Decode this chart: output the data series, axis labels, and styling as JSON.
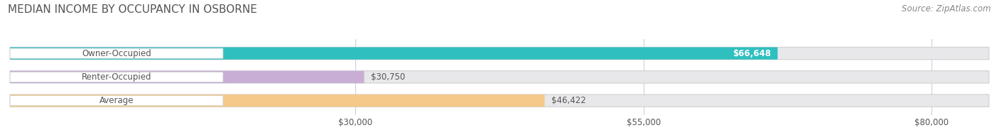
{
  "title": "MEDIAN INCOME BY OCCUPANCY IN OSBORNE",
  "source": "Source: ZipAtlas.com",
  "categories": [
    "Owner-Occupied",
    "Renter-Occupied",
    "Average"
  ],
  "values": [
    66648,
    30750,
    46422
  ],
  "bar_colors": [
    "#30bfbf",
    "#c8aed4",
    "#f5c98a"
  ],
  "bar_track_color": "#e8e8ea",
  "bar_track_edge_color": "#d0d0d4",
  "value_labels": [
    "$66,648",
    "$30,750",
    "$46,422"
  ],
  "value_label_inside": [
    true,
    false,
    false
  ],
  "xticks": [
    30000,
    55000,
    80000
  ],
  "xtick_labels": [
    "$30,000",
    "$55,000",
    "$80,000"
  ],
  "xmin": 0,
  "xmax": 85000,
  "title_fontsize": 11,
  "source_fontsize": 8.5,
  "label_fontsize": 8.5,
  "tick_fontsize": 8.5,
  "bar_height": 0.52,
  "background_color": "#ffffff",
  "grid_color": "#d0d0d4",
  "text_color": "#555555",
  "source_color": "#888888"
}
